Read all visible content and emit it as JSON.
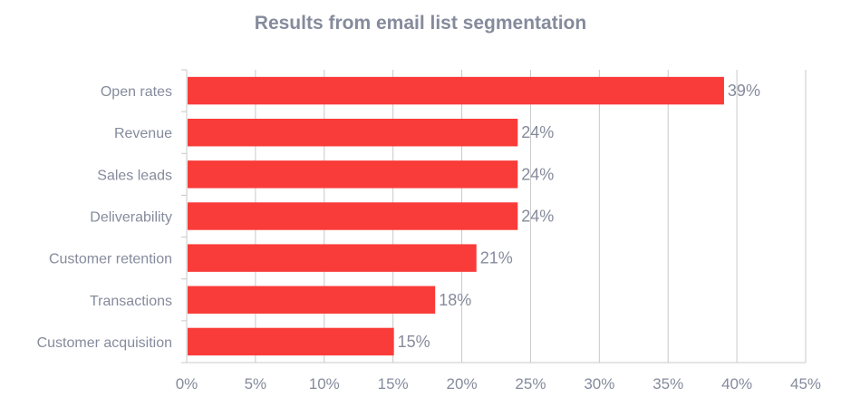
{
  "chart_data": {
    "type": "bar",
    "orientation": "horizontal",
    "title": "Results from email list segmentation",
    "categories": [
      "Open rates",
      "Revenue",
      "Sales leads",
      "Deliverability",
      "Customer retention",
      "Transactions",
      "Customer acquisition"
    ],
    "values": [
      39,
      24,
      24,
      24,
      21,
      18,
      15
    ],
    "value_labels": [
      "39%",
      "24%",
      "24%",
      "24%",
      "21%",
      "18%",
      "15%"
    ],
    "xlim": [
      0,
      45
    ],
    "xticks": [
      "0%",
      "5%",
      "10%",
      "15%",
      "20%",
      "25%",
      "30%",
      "35%",
      "40%",
      "45%"
    ],
    "grid": true,
    "legend": "none",
    "bar_color": "#f93c39",
    "text_color": "#858b9c",
    "grid_color": "#c8c8c8"
  }
}
